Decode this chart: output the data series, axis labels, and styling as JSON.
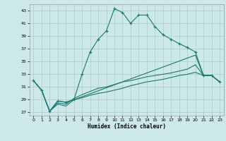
{
  "xlabel": "Humidex (Indice chaleur)",
  "background_color": "#cce8e8",
  "grid_color": "#aacccc",
  "line_color": "#1a7a6e",
  "xlim": [
    -0.5,
    23.5
  ],
  "ylim": [
    26.5,
    44.0
  ],
  "yticks": [
    27,
    29,
    31,
    33,
    35,
    37,
    39,
    41,
    43
  ],
  "xticks": [
    0,
    1,
    2,
    3,
    4,
    5,
    6,
    7,
    8,
    9,
    10,
    11,
    12,
    13,
    14,
    15,
    16,
    17,
    18,
    19,
    20,
    21,
    22,
    23
  ],
  "series1_x": [
    0,
    1,
    2,
    3,
    4,
    5,
    6,
    7,
    8,
    9,
    10,
    11,
    12,
    13,
    14,
    15,
    16,
    17,
    18,
    19,
    20,
    21,
    22,
    23
  ],
  "series1_y": [
    32.0,
    30.5,
    27.2,
    28.8,
    28.6,
    29.0,
    33.0,
    36.5,
    38.5,
    39.8,
    43.3,
    42.7,
    41.0,
    42.3,
    42.3,
    40.5,
    39.2,
    38.5,
    37.8,
    37.2,
    36.5,
    32.8,
    32.8,
    31.8
  ],
  "series2_x": [
    0,
    1,
    2,
    3,
    4,
    5,
    20,
    21,
    22,
    23
  ],
  "series2_y": [
    32.0,
    30.5,
    27.2,
    28.8,
    28.6,
    29.0,
    36.0,
    32.8,
    32.8,
    31.8
  ],
  "series3_x": [
    0,
    1,
    2,
    3,
    4,
    5,
    6,
    7,
    8,
    9,
    10,
    11,
    12,
    13,
    14,
    15,
    16,
    17,
    18,
    19,
    20,
    21,
    22,
    23
  ],
  "series3_y": [
    32.0,
    30.5,
    27.2,
    28.3,
    28.0,
    29.0,
    29.3,
    29.7,
    30.0,
    30.2,
    30.5,
    30.8,
    31.2,
    31.5,
    31.8,
    32.0,
    32.2,
    32.5,
    32.8,
    33.0,
    33.3,
    32.8,
    32.8,
    31.8
  ],
  "series4_x": [
    0,
    1,
    2,
    3,
    4,
    5,
    6,
    7,
    8,
    9,
    10,
    11,
    12,
    13,
    14,
    15,
    16,
    17,
    18,
    19,
    20,
    21,
    22,
    23
  ],
  "series4_y": [
    32.0,
    30.5,
    27.2,
    28.5,
    28.3,
    29.2,
    29.8,
    30.3,
    30.8,
    31.0,
    31.4,
    31.8,
    32.0,
    32.3,
    32.6,
    32.8,
    33.0,
    33.2,
    33.5,
    33.8,
    34.5,
    32.8,
    32.8,
    31.8
  ]
}
